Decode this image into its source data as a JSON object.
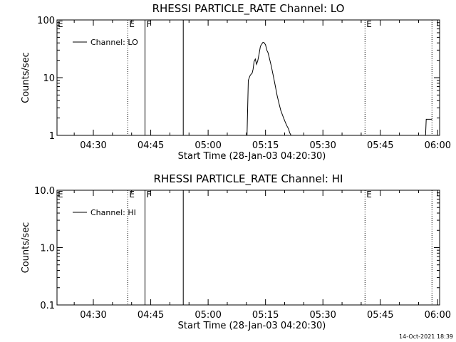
{
  "timestamp": "14-Oct-2021 18:39",
  "chart_data": [
    {
      "type": "line",
      "title": "RHESSI PARTICLE_RATE Channel: LO",
      "xlabel": "Start Time (28-Jan-03 04:20:30)",
      "ylabel": "Counts/sec",
      "yscale": "log",
      "ylim": [
        1,
        100
      ],
      "yticks": [
        {
          "value": 1,
          "label": "1"
        },
        {
          "value": 10,
          "label": "10"
        },
        {
          "value": 100,
          "label": "100"
        }
      ],
      "xlim": [
        "04:20:30",
        "06:00:30"
      ],
      "xticks": [
        "04:30",
        "04:45",
        "05:00",
        "05:15",
        "05:30",
        "05:45",
        "06:00"
      ],
      "legend": {
        "label": "Channel: LO",
        "position": "top-left"
      },
      "grid": false,
      "markers": [
        {
          "time": "04:39:00",
          "label": "E",
          "style": "dotted"
        },
        {
          "time": "04:43:30",
          "label": "F",
          "style": "solid"
        },
        {
          "time": "04:53:30",
          "label": "",
          "style": "solid"
        },
        {
          "time": "05:41:00",
          "label": "E",
          "style": "dotted"
        },
        {
          "time": "05:58:30",
          "label": "",
          "style": "dotted"
        }
      ],
      "series": [
        {
          "color": "#000000",
          "x": [
            "05:10:10",
            "05:10:30",
            "05:11:00",
            "05:11:30",
            "05:11:45",
            "05:12:00",
            "05:12:20",
            "05:12:40",
            "05:13:00",
            "05:13:20",
            "05:13:40",
            "05:14:00",
            "05:14:20",
            "05:14:40",
            "05:15:00",
            "05:15:20",
            "05:15:40",
            "05:16:00",
            "05:16:30",
            "05:17:00",
            "05:17:30",
            "05:18:00",
            "05:18:30",
            "05:19:00",
            "05:19:30",
            "05:20:00",
            "05:20:30",
            "05:21:00",
            "05:21:20",
            "05:21:40"
          ],
          "values": [
            1,
            9,
            11,
            12,
            14,
            19,
            21,
            17,
            20,
            26,
            35,
            38,
            41,
            40,
            37,
            30,
            27,
            22,
            16,
            11,
            7.5,
            5,
            3.6,
            2.7,
            2.2,
            1.8,
            1.5,
            1.3,
            1.1,
            1
          ]
        },
        {
          "color": "#000000",
          "x": [
            "05:56:50",
            "05:57:00",
            "05:58:30"
          ],
          "values": [
            1,
            1.9,
            1.9
          ]
        }
      ]
    },
    {
      "type": "line",
      "title": "RHESSI PARTICLE_RATE Channel: HI",
      "xlabel": "Start Time (28-Jan-03 04:20:30)",
      "ylabel": "Counts/sec",
      "yscale": "log",
      "ylim": [
        0.1,
        10
      ],
      "yticks": [
        {
          "value": 0.1,
          "label": "0.1"
        },
        {
          "value": 1,
          "label": "1.0"
        },
        {
          "value": 10,
          "label": "10.0"
        }
      ],
      "xlim": [
        "04:20:30",
        "06:00:30"
      ],
      "xticks": [
        "04:30",
        "04:45",
        "05:00",
        "05:15",
        "05:30",
        "05:45",
        "06:00"
      ],
      "legend": {
        "label": "Channel: HI",
        "position": "top-left"
      },
      "grid": false,
      "markers": [
        {
          "time": "04:39:00",
          "label": "E",
          "style": "dotted"
        },
        {
          "time": "04:43:30",
          "label": "F",
          "style": "solid"
        },
        {
          "time": "04:53:30",
          "label": "",
          "style": "solid"
        },
        {
          "time": "05:41:00",
          "label": "E",
          "style": "dotted"
        },
        {
          "time": "05:58:30",
          "label": "",
          "style": "dotted"
        }
      ],
      "series": []
    }
  ]
}
